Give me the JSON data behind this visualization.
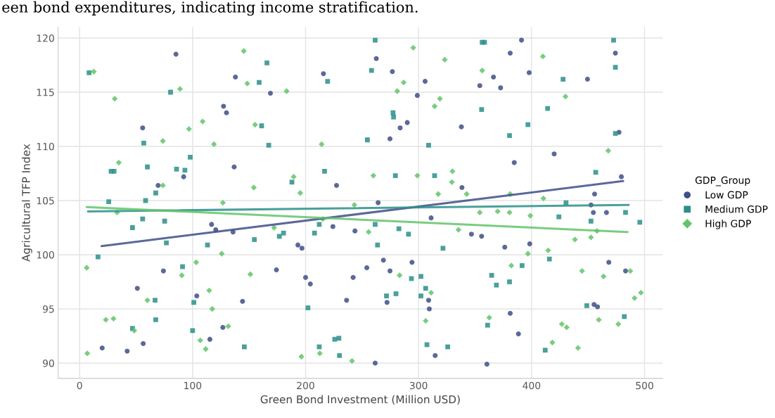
{
  "chart_data": {
    "type": "scatter",
    "annotations": [
      "een bond expenditures, indicating income stratification."
    ],
    "xlabel": "Green Bond Investment (Million USD)",
    "ylabel": "Agricultural TFP Index",
    "legend_title": "GDP_Group",
    "xlim": [
      -19,
      516
    ],
    "ylim": [
      88.6,
      121.0
    ],
    "xticks": [
      0,
      100,
      200,
      300,
      400,
      500
    ],
    "yticks": [
      90,
      95,
      100,
      105,
      110,
      115,
      120
    ],
    "grid": true,
    "legend": "right",
    "series": [
      {
        "name": "Low GDP",
        "color": "#3f4e88",
        "marker": "circle",
        "x": [
          85.3,
          137.9,
          127.4,
          130.0,
          55.8,
          136.8,
          92.1,
          69.5,
          168.9,
          215.8,
          262.6,
          276.8,
          305.8,
          298.9,
          283.7,
          290.0,
          274.7,
          337.9,
          227.4,
          264.2,
          338.4,
          391.1,
          381.1,
          366.3,
          354.2,
          372.6,
          397.9,
          449.5,
          474.2,
          420.0,
          384.7,
          479.5,
          477.4,
          455.8,
          116.8,
          120.5,
          135.8,
          74.2,
          51.1,
          103.7,
          144.2,
          126.8,
          115.3,
          56.3,
          20.0,
          42.1,
          224.2,
          243.7,
          311.1,
          193.2,
          196.8,
          174.2,
          200.0,
          204.2,
          242.1,
          254.2,
          268.9,
          274.7,
          294.2,
          236.3,
          272.1,
          308.9,
          309.5,
          314.7,
          261.6,
          452.6,
          454.7,
          466.3,
          346.8,
          355.8,
          376.3,
          398.4,
          468.4,
          483.2,
          455.3,
          458.4,
          381.1,
          388.4,
          360.5
        ],
        "values": [
          118.5,
          116.4,
          113.7,
          113.1,
          111.7,
          108.1,
          107.2,
          106.4,
          114.9,
          116.7,
          118.1,
          116.9,
          116.0,
          114.7,
          111.7,
          112.2,
          110.7,
          111.8,
          106.4,
          104.8,
          106.2,
          119.8,
          118.6,
          116.4,
          115.6,
          115.4,
          116.8,
          116.2,
          118.6,
          109.3,
          108.5,
          107.2,
          111.3,
          105.6,
          102.8,
          102.3,
          102.1,
          98.5,
          96.9,
          96.2,
          95.7,
          93.3,
          92.2,
          91.8,
          91.4,
          91.1,
          102.6,
          102.2,
          103.4,
          100.9,
          100.6,
          98.6,
          97.9,
          97.3,
          97.9,
          98.8,
          99.5,
          98.5,
          99.3,
          95.8,
          95.6,
          95.8,
          95.0,
          90.7,
          90.0,
          104.6,
          103.9,
          103.9,
          101.9,
          101.7,
          100.7,
          101.0,
          99.3,
          98.5,
          95.4,
          95.2,
          94.6,
          92.7,
          89.9
        ]
      },
      {
        "name": "Medium GDP",
        "color": "#2a8f8a",
        "marker": "square",
        "x": [
          8.4,
          80.5,
          158.9,
          161.1,
          56.8,
          97.9,
          60.0,
          85.8,
          93.2,
          27.9,
          30.5,
          67.4,
          25.8,
          58.4,
          165.8,
          167.4,
          219.5,
          261.6,
          258.4,
          277.4,
          277.9,
          254.7,
          308.9,
          216.8,
          187.9,
          279.5,
          314.2,
          356.3,
          358.4,
          472.6,
          474.2,
          427.9,
          355.8,
          414.2,
          396.8,
          380.5,
          474.2,
          456.8,
          430.5,
          55.8,
          46.8,
          75.3,
          76.8,
          113.2,
          154.7,
          16.3,
          91.1,
          66.8,
          101.1,
          67.4,
          100.0,
          145.8,
          46.8,
          261.6,
          282.6,
          176.8,
          180.5,
          207.9,
          212.1,
          263.7,
          291.1,
          321.6,
          202.1,
          293.7,
          302.1,
          271.6,
          280.0,
          302.1,
          306.3,
          225.8,
          229.5,
          212.1,
          230.0,
          307.4,
          325.8,
          424.2,
          452.6,
          483.2,
          495.8,
          415.8,
          391.6,
          364.7,
          368.9,
          380.5,
          448.9,
          482.1,
          361.1,
          412.1
        ],
        "values": [
          116.8,
          115.0,
          115.9,
          111.9,
          110.3,
          109.0,
          108.1,
          107.9,
          107.8,
          107.7,
          107.7,
          105.7,
          104.9,
          105.0,
          117.7,
          110.1,
          116.0,
          119.8,
          117.0,
          113.1,
          112.7,
          110.6,
          110.1,
          107.7,
          106.7,
          107.3,
          107.3,
          119.6,
          119.6,
          119.8,
          117.3,
          116.2,
          113.4,
          113.5,
          112.0,
          111.0,
          111.2,
          107.6,
          104.8,
          103.3,
          102.5,
          103.1,
          101.1,
          100.9,
          101.4,
          99.8,
          98.9,
          95.8,
          95.6,
          94.0,
          93.0,
          91.5,
          93.2,
          102.8,
          102.4,
          101.7,
          102.0,
          102.0,
          102.8,
          100.9,
          101.9,
          100.6,
          95.1,
          97.8,
          98.0,
          96.2,
          96.4,
          96.2,
          96.9,
          92.2,
          92.3,
          91.5,
          90.7,
          91.7,
          91.5,
          103.5,
          103.1,
          103.9,
          103.0,
          99.6,
          99.0,
          98.1,
          97.2,
          97.5,
          95.3,
          94.3,
          93.5,
          91.2
        ]
      },
      {
        "name": "High GDP",
        "color": "#62c46a",
        "marker": "diamond",
        "x": [
          12.6,
          145.3,
          148.4,
          88.9,
          31.1,
          108.9,
          96.8,
          155.3,
          73.7,
          118.9,
          34.7,
          73.7,
          154.2,
          126.8,
          183.2,
          295.3,
          323.2,
          286.8,
          281.1,
          318.9,
          314.2,
          214.2,
          189.5,
          195.3,
          260.0,
          298.9,
          330.0,
          329.5,
          317.4,
          410.0,
          356.3,
          430.0,
          467.9,
          342.6,
          381.1,
          410.5,
          33.2,
          125.8,
          103.2,
          6.3,
          90.5,
          151.1,
          114.7,
          60.0,
          117.4,
          23.2,
          30.0,
          48.4,
          131.6,
          106.8,
          111.6,
          6.8,
          243.2,
          215.3,
          172.1,
          255.8,
          283.2,
          311.1,
          306.3,
          196.3,
          212.6,
          241.1,
          335.3,
          354.2,
          370.0,
          380.5,
          398.9,
          438.4,
          452.6,
          457.9,
          414.7,
          396.8,
          382.1,
          444.7,
          463.7,
          487.4,
          491.1,
          496.8,
          362.6,
          459.5,
          476.8,
          426.8,
          431.1,
          418.4,
          441.1
        ],
        "values": [
          116.9,
          118.8,
          115.8,
          115.3,
          114.4,
          112.3,
          111.6,
          112.0,
          110.5,
          110.2,
          108.5,
          106.4,
          106.2,
          104.8,
          115.1,
          119.1,
          118.0,
          115.9,
          115.1,
          114.4,
          113.7,
          110.2,
          107.2,
          105.7,
          107.3,
          107.3,
          107.7,
          106.7,
          105.6,
          118.3,
          117.0,
          114.6,
          109.6,
          105.6,
          105.6,
          105.2,
          103.9,
          100.1,
          99.3,
          98.8,
          98.1,
          98.2,
          96.7,
          95.8,
          95.0,
          94.0,
          94.1,
          93.0,
          93.4,
          92.1,
          91.3,
          90.9,
          104.6,
          103.3,
          102.5,
          102.1,
          98.1,
          96.5,
          93.9,
          90.6,
          90.9,
          90.2,
          102.3,
          103.9,
          104.0,
          103.9,
          103.6,
          101.4,
          101.6,
          102.2,
          100.4,
          100.1,
          99.0,
          98.5,
          98.0,
          98.5,
          96.0,
          96.5,
          94.2,
          94.0,
          93.6,
          93.6,
          93.3,
          91.9,
          91.4
        ]
      },
      {
        "type": "line",
        "color": "#3f4e88",
        "line_style": "solid",
        "marker": "none",
        "x": [
          19.5,
          481
        ],
        "values": [
          100.8,
          106.8
        ]
      },
      {
        "type": "line",
        "color": "#2a8f8a",
        "line_style": "solid",
        "marker": "none",
        "x": [
          7.4,
          486
        ],
        "values": [
          104.0,
          104.6
        ]
      },
      {
        "type": "line",
        "color": "#62c46a",
        "line_style": "solid",
        "marker": "none",
        "x": [
          6.3,
          485
        ],
        "values": [
          104.4,
          102.1
        ]
      }
    ]
  }
}
